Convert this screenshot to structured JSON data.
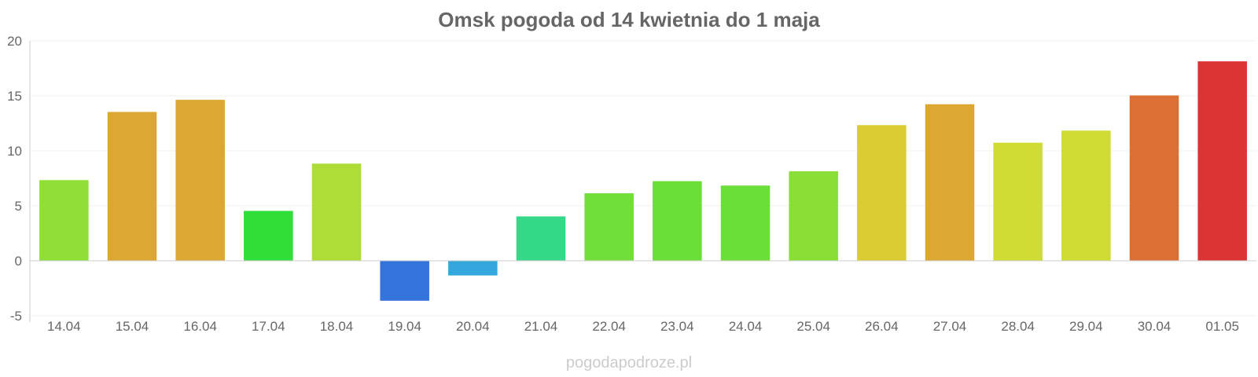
{
  "chart_data": {
    "type": "bar",
    "title": "Omsk pogoda od 14 kwietnia do 1 maja",
    "xlabel": "",
    "ylabel": "",
    "ylim": [
      -5,
      20
    ],
    "yticks": [
      -5,
      0,
      5,
      10,
      15,
      20
    ],
    "grid": true,
    "legend": "none",
    "categories": [
      "14.04",
      "15.04",
      "16.04",
      "17.04",
      "18.04",
      "19.04",
      "20.04",
      "21.04",
      "22.04",
      "23.04",
      "24.04",
      "25.04",
      "26.04",
      "27.04",
      "28.04",
      "29.04",
      "30.04",
      "01.05"
    ],
    "values": [
      7.3,
      13.5,
      14.6,
      4.5,
      8.8,
      -3.6,
      -1.3,
      4.0,
      6.1,
      7.2,
      6.8,
      8.1,
      12.3,
      14.2,
      10.7,
      11.8,
      15.0,
      18.1
    ],
    "colors": [
      "#8fdf37",
      "#dca832",
      "#dca832",
      "#30df37",
      "#aedd38",
      "#3574dc",
      "#34a8dc",
      "#34d987",
      "#70df37",
      "#6adf37",
      "#6adf37",
      "#8adf37",
      "#dccc34",
      "#dca832",
      "#cedc34",
      "#cedc34",
      "#dc7034",
      "#dc3434"
    ]
  },
  "source": "pogodapodroze.pl"
}
